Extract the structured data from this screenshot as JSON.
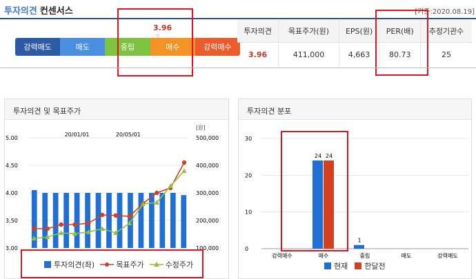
{
  "header": {
    "title_main": "투자의견",
    "title_sub": "컨센서스",
    "ref_date": "[기준:2020.08.19]"
  },
  "scale": {
    "score": "3.96",
    "segments": [
      {
        "label": "강력매도",
        "color": "#2d5aa4"
      },
      {
        "label": "매도",
        "color": "#4a8ee0"
      },
      {
        "label": "중립",
        "color": "#7ec242"
      },
      {
        "label": "매수",
        "color": "#f39325"
      },
      {
        "label": "강력매수",
        "color": "#ec5b2c"
      }
    ]
  },
  "summary_table": {
    "headers": [
      "투자의견",
      "목표주가(원)",
      "EPS(원)",
      "PER(배)",
      "추정기관수"
    ],
    "values": [
      "3.96",
      "411,000",
      "4,663",
      "80.73",
      "25"
    ]
  },
  "left_chart": {
    "panel_title": "투자의견 및 목표주가",
    "unit_label": "[원]",
    "legend": [
      "투자의견(좌)",
      "목표주가",
      "수정주가"
    ]
  },
  "right_chart": {
    "panel_title": "투자의견 분포",
    "legend": [
      "현재",
      "한달전"
    ]
  },
  "chart_data": [
    {
      "type": "bar",
      "title": "",
      "x_ticks": [
        "20/01/01",
        "20/05/01"
      ],
      "ylim_left": [
        3.0,
        5.0
      ],
      "y_ticks_left": [
        "5.00",
        "4.50",
        "4.00",
        "3.50",
        "3.00"
      ],
      "ylim_right": [
        100000,
        500000
      ],
      "y_ticks_right": [
        "500,000",
        "400,000",
        "300,000",
        "200,000",
        "100,000"
      ],
      "series": [
        {
          "name": "투자의견(좌)",
          "type": "bar",
          "color": "#1f6fd6",
          "axis": "left",
          "values": [
            4.05,
            4.0,
            4.0,
            4.0,
            4.0,
            4.0,
            4.0,
            4.0,
            4.0,
            4.0,
            4.0,
            4.0,
            4.0,
            4.0,
            3.96
          ]
        },
        {
          "name": "목표주가",
          "type": "line",
          "color": "#d2401f",
          "axis": "right",
          "values": [
            170000,
            170000,
            185000,
            185000,
            190000,
            220000,
            218000,
            215000,
            262000,
            300000,
            318000,
            410000
          ]
        },
        {
          "name": "수정주가",
          "type": "line",
          "color": "#8fc43a",
          "axis": "right",
          "values": [
            135000,
            140000,
            155000,
            152000,
            158000,
            170000,
            155000,
            190000,
            260000,
            265000,
            325000,
            380000
          ]
        }
      ]
    },
    {
      "type": "bar",
      "title": "",
      "categories": [
        "강력매수",
        "매수",
        "중립",
        "매도",
        "강력매도"
      ],
      "ylim": [
        0,
        30
      ],
      "y_ticks": [
        "30",
        "20",
        "10",
        "0"
      ],
      "series": [
        {
          "name": "현재",
          "color": "#1f6fd6",
          "values": [
            0,
            24,
            1,
            0,
            0
          ]
        },
        {
          "name": "한달전",
          "color": "#d2401f",
          "values": [
            0,
            24,
            0,
            0,
            0
          ]
        }
      ]
    }
  ]
}
